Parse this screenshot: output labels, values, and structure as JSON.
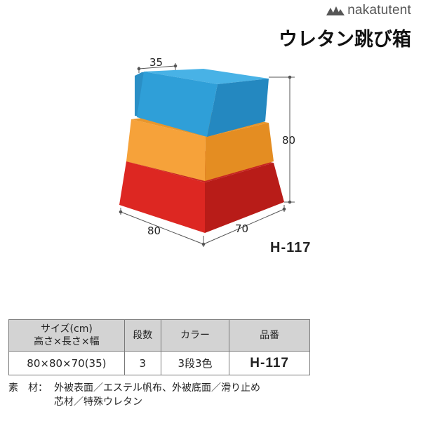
{
  "brand": {
    "name": "nakatutent",
    "logo_icon": "mountain-logo-icon"
  },
  "title": "ウレタン跳び箱",
  "figure": {
    "dims": {
      "top_width": "35",
      "height": "80",
      "length": "80",
      "width": "70"
    },
    "tier_colors": {
      "top": "#2f9fd8",
      "middle": "#f6a23a",
      "bottom": "#dd2722"
    }
  },
  "model_label": "H-117",
  "table": {
    "headers": {
      "size_line1": "サイズ(cm)",
      "size_line2": "高さ×長さ×幅",
      "tiers": "段数",
      "color": "カラー",
      "product_no": "品番"
    },
    "row": {
      "size": "80×80×70(35)",
      "tiers": "3",
      "color": "3段3色",
      "product_no": "H-117"
    }
  },
  "materials": {
    "label": "素　材：",
    "line1": "外被表面／エステル帆布、外被底面／滑り止め",
    "line2": "芯材／特殊ウレタン"
  }
}
